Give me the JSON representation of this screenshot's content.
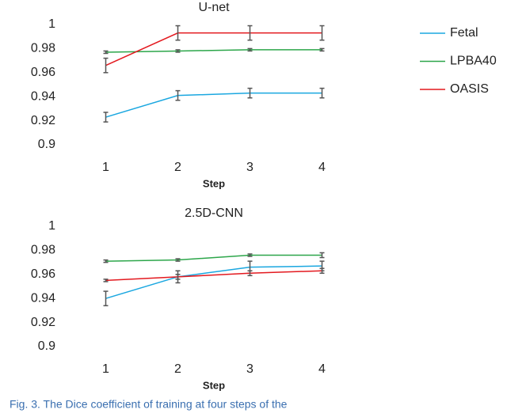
{
  "legend": [
    {
      "name": "Fetal",
      "color": "#1aa7e0"
    },
    {
      "name": "LPBA40",
      "color": "#2ca64a"
    },
    {
      "name": "OASIS",
      "color": "#e3191f"
    }
  ],
  "chart_data": [
    {
      "type": "line",
      "title": "U-net",
      "x_label": "Step",
      "categories": [
        "1",
        "2",
        "3",
        "4"
      ],
      "ylim": [
        0.9,
        1
      ],
      "yticks": [
        0.9,
        0.92,
        0.94,
        0.96,
        0.98,
        1
      ],
      "series": [
        {
          "values": [
            0.923,
            0.941,
            0.943,
            0.943
          ],
          "errors": [
            0.004,
            0.004,
            0.004,
            0.004
          ]
        },
        {
          "values": [
            0.977,
            0.978,
            0.979,
            0.979
          ],
          "errors": [
            0.001,
            0.001,
            0.001,
            0.001
          ]
        },
        {
          "values": [
            0.966,
            0.993,
            0.993,
            0.993
          ],
          "errors": [
            0.006,
            0.006,
            0.006,
            0.006
          ]
        }
      ]
    },
    {
      "type": "line",
      "title": "2.5D-CNN",
      "x_label": "Step",
      "categories": [
        "1",
        "2",
        "3",
        "4"
      ],
      "ylim": [
        0.9,
        1
      ],
      "yticks": [
        0.9,
        0.92,
        0.94,
        0.96,
        0.98,
        1
      ],
      "series": [
        {
          "values": [
            0.94,
            0.958,
            0.966,
            0.967
          ],
          "errors": [
            0.006,
            0.005,
            0.005,
            0.004
          ]
        },
        {
          "values": [
            0.971,
            0.972,
            0.976,
            0.976
          ],
          "errors": [
            0.001,
            0.001,
            0.001,
            0.002
          ]
        },
        {
          "values": [
            0.955,
            0.958,
            0.961,
            0.963
          ],
          "errors": [
            0.001,
            0.002,
            0.002,
            0.002
          ]
        }
      ]
    }
  ],
  "caption": "Fig. 3.  The Dice coefficient of training at four steps of the"
}
